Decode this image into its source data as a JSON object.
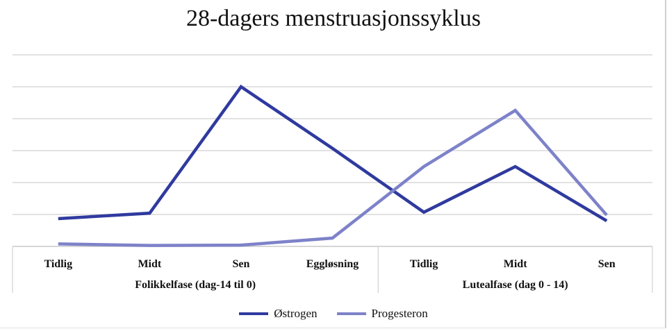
{
  "chart_data": {
    "type": "line",
    "title": "28-dagers menstruasjonssyklus",
    "categories": [
      "Tidlig",
      "Midt",
      "Sen",
      "Eggløsning",
      "Tidlig",
      "Midt",
      "Sen"
    ],
    "groups": [
      {
        "label": "Folikkelfase (dag-14 til 0)",
        "span": 4
      },
      {
        "label": "Lutealfase (dag 0 - 14)",
        "span": 3
      }
    ],
    "series": [
      {
        "name": "Østrogen",
        "color": "#2f3a9f",
        "values": [
          0.87,
          1.04,
          5.0,
          3.07,
          1.07,
          2.5,
          0.8
        ]
      },
      {
        "name": "Progesteron",
        "color": "#7d82c9",
        "values": [
          0.08,
          0.03,
          0.04,
          0.26,
          2.5,
          4.26,
          0.98
        ]
      }
    ],
    "ylim": [
      0,
      6
    ],
    "grid": true,
    "y_ticks_shown": false,
    "legend": "bottom",
    "xlabel": "",
    "ylabel": ""
  }
}
